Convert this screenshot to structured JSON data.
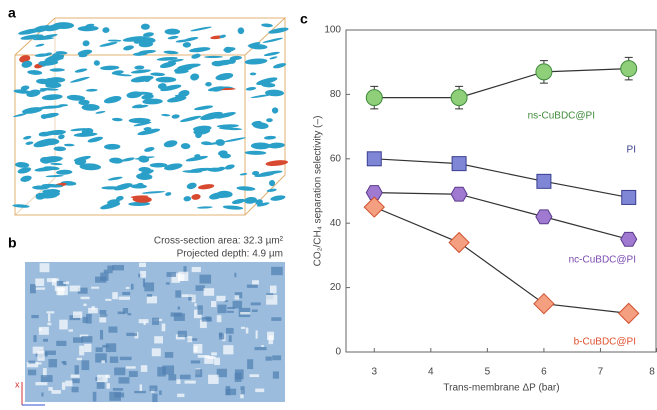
{
  "panels": {
    "a": "a",
    "b": "b",
    "c": "c"
  },
  "panel_b": {
    "area": "Cross-section area: 32.3 µm²",
    "depth": "Projected depth: 4.9 µm",
    "axis_x": "x"
  },
  "chart_data": {
    "type": "scatter-line",
    "xlabel": "Trans-membrane ΔP (bar)",
    "ylabel": "CO₂/CH₄ separation selectivity (–)",
    "x": [
      3,
      4.5,
      6,
      7.5
    ],
    "xlim": [
      2.5,
      8
    ],
    "xticks": [
      3,
      4,
      5,
      6,
      7,
      8
    ],
    "ylim": [
      0,
      100
    ],
    "yticks": [
      0,
      20,
      40,
      60,
      80,
      100
    ],
    "series": [
      {
        "name": "ns-CuBDC@PI",
        "color": "#8fcf7a",
        "edge": "#3f8a3a",
        "label_color": "#3f8a3a",
        "marker": "circle",
        "values": [
          79,
          79,
          87,
          88
        ],
        "errors": [
          3.5,
          3.5,
          3.5,
          3.5
        ]
      },
      {
        "name": "PI",
        "color": "#7f86d6",
        "edge": "#3a3f8f",
        "label_color": "#3a3f8f",
        "marker": "square",
        "values": [
          60,
          58.5,
          53,
          48
        ],
        "errors": [
          2,
          2,
          1.5,
          1.5
        ]
      },
      {
        "name": "nc-CuBDC@PI",
        "color": "#a07ad0",
        "edge": "#5a3a8a",
        "label_color": "#7a4ab0",
        "marker": "hexagon",
        "values": [
          49.5,
          49,
          42,
          35
        ],
        "errors": [
          1.5,
          1.5,
          1.5,
          1.5
        ]
      },
      {
        "name": "b-CuBDC@PI",
        "color": "#f4a080",
        "edge": "#d05030",
        "label_color": "#e05030",
        "marker": "diamond",
        "values": [
          45,
          34,
          15,
          12
        ]
      }
    ]
  }
}
